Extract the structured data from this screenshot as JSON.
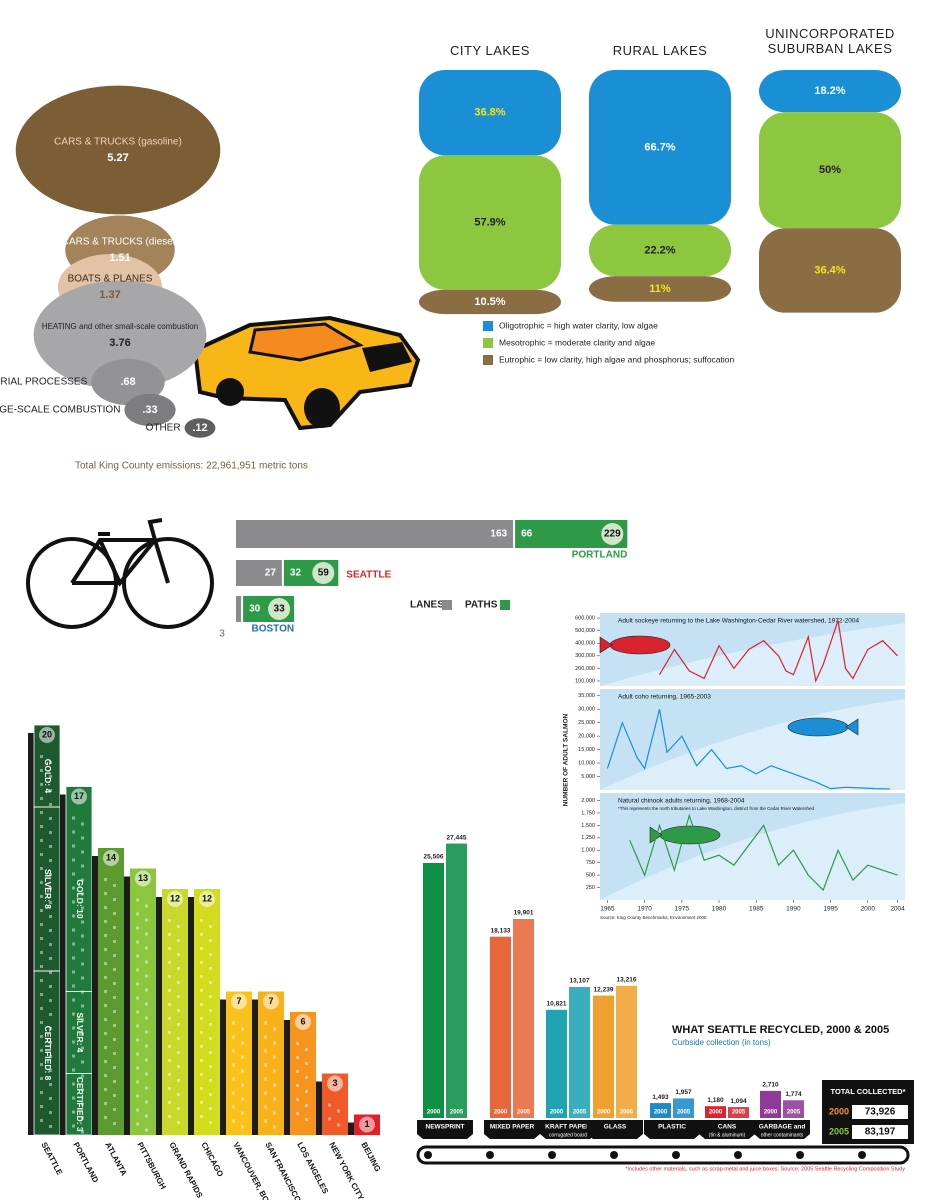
{
  "chart_data": [
    {
      "type": "bubble",
      "categories": [
        "CARS & TRUCKS (gasoline)",
        "CARS & TRUCKS (diesel)",
        "BOATS & PLANES",
        "HEATING and other small-scale combustion",
        "INDUSTRIAL PROCESSES",
        "LARGE-SCALE COMBUSTION",
        "OTHER"
      ],
      "values": [
        5.27,
        1.51,
        1.37,
        3.76,
        0.68,
        0.33,
        0.12
      ],
      "value_labels": [
        "5.27",
        "1.51",
        "1.37",
        "3.76",
        ".68",
        ".33",
        ".12"
      ],
      "colors": [
        "#7b5d36",
        "#a3835a",
        "#e3c3a5",
        "#a7a7a9",
        "#939396",
        "#7d7d80",
        "#5e5e61"
      ],
      "annotation": "Total King County emissions: 22,961,951 metric tons"
    },
    {
      "type": "stacked-bar",
      "categories": [
        "CITY LAKES",
        "RURAL LAKES",
        "UNINCORPORATED SUBURBAN LAKES"
      ],
      "series": [
        {
          "name": "Oligotrophic = high water clarity, low algae",
          "color": "#1b8fd6",
          "values": [
            36.8,
            66.7,
            18.2
          ],
          "value_labels": [
            "36.8%",
            "66.7%",
            "18.2%"
          ],
          "label_colors": [
            "#f5e614",
            "#ffffff",
            "#ffffff"
          ]
        },
        {
          "name": "Mesotrophic = moderate clarity and algae",
          "color": "#8dc63f",
          "values": [
            57.9,
            22.2,
            50
          ],
          "value_labels": [
            "57.9%",
            "22.2%",
            "50%"
          ],
          "label_colors": [
            "#222222",
            "#222222",
            "#222222"
          ]
        },
        {
          "name": "Eutrophic = low clarity, high algae and phosphorus; suffocation",
          "color": "#8b6d43",
          "values": [
            10.5,
            11,
            36.4
          ],
          "value_labels": [
            "10.5%",
            "11%",
            "36.4%"
          ],
          "label_colors": [
            "#ffffff",
            "#f5e614",
            "#f5e614"
          ]
        }
      ]
    },
    {
      "type": "horizontal-stacked-bar",
      "categories": [
        "PORTLAND",
        "SEATTLE",
        "BOSTON"
      ],
      "category_colors": [
        "#2e9a47",
        "#d9232e",
        "#1f6fb5"
      ],
      "series": [
        {
          "name": "LANES",
          "color": "#8b8b8e",
          "values": [
            163,
            27,
            3
          ]
        },
        {
          "name": "PATHS",
          "color": "#2e9a47",
          "values": [
            66,
            32,
            30
          ]
        }
      ],
      "totals": [
        229,
        59,
        33
      ]
    },
    {
      "type": "line",
      "ylabel": "NUMBER OF ADULT SALMON",
      "xlim": [
        1964,
        2005
      ],
      "xticks": [
        1965,
        1970,
        1975,
        1980,
        1985,
        1990,
        1995,
        2000,
        2004
      ],
      "source": "Source: King County Benchmarks; Environment 2005",
      "panels": [
        {
          "title": "Adult sockeye returning to the Lake Washington-Cedar River watershed, 1972-2004",
          "color": "#d9232e",
          "x": [
            1972,
            1974,
            1976,
            1978,
            1980,
            1982,
            1984,
            1986,
            1988,
            1989,
            1990,
            1992,
            1993,
            1994,
            1996,
            1997,
            1998,
            2000,
            2002,
            2004
          ],
          "values": [
            150000,
            350000,
            180000,
            120000,
            380000,
            200000,
            350000,
            420000,
            300000,
            180000,
            150000,
            450000,
            100000,
            230000,
            580000,
            200000,
            120000,
            350000,
            420000,
            300000
          ],
          "ylim": [
            60000,
            640000
          ],
          "yticks": [
            {
              "value": 100000,
              "label": "100,000"
            },
            {
              "value": 200000,
              "label": "200,000"
            },
            {
              "value": 300000,
              "label": "300,000"
            },
            {
              "value": 400000,
              "label": "400,000"
            },
            {
              "value": 500000,
              "label": "500,000"
            },
            {
              "value": 600000,
              "label": "600,000"
            }
          ]
        },
        {
          "title": "Adult coho returning, 1965-2003",
          "color": "#1b8fd6",
          "x": [
            1965,
            1967,
            1969,
            1970,
            1972,
            1973,
            1975,
            1977,
            1979,
            1981,
            1983,
            1985,
            1987,
            1989,
            1991,
            1993,
            1995,
            1997,
            1999,
            2001,
            2003
          ],
          "values": [
            8000,
            25000,
            12000,
            8000,
            30000,
            14000,
            20000,
            9000,
            15000,
            8000,
            9000,
            6000,
            9000,
            7000,
            5000,
            3000,
            500,
            1000,
            800,
            500,
            400
          ],
          "ylim": [
            0,
            37500
          ],
          "yticks": [
            {
              "value": 5000,
              "label": "5,000"
            },
            {
              "value": 10000,
              "label": "10,000"
            },
            {
              "value": 15000,
              "label": "15,000"
            },
            {
              "value": 20000,
              "label": "20,000"
            },
            {
              "value": 25000,
              "label": "25,000"
            },
            {
              "value": 30000,
              "label": "30,000"
            },
            {
              "value": 35000,
              "label": "35,000"
            }
          ]
        },
        {
          "title": "Natural chinook adults returning, 1968-2004",
          "note": "*This represents the north tributaries to Lake Washington, distinct from the Cedar River Watershed",
          "color": "#2e9a47",
          "x": [
            1968,
            1970,
            1972,
            1974,
            1976,
            1978,
            1980,
            1982,
            1984,
            1986,
            1988,
            1990,
            1992,
            1994,
            1996,
            1998,
            2000,
            2002,
            2004
          ],
          "values": [
            1200,
            500,
            1500,
            600,
            1700,
            800,
            900,
            700,
            1100,
            1500,
            700,
            1000,
            500,
            200,
            1000,
            400,
            700,
            600,
            500
          ],
          "ylim": [
            0,
            2150
          ],
          "yticks": [
            250,
            500,
            750,
            {
              "value": 1000,
              "label": "1,000"
            },
            {
              "value": 1250,
              "label": "1,250"
            },
            {
              "value": 1500,
              "label": "1,500"
            },
            {
              "value": 1750,
              "label": "1,750"
            },
            {
              "value": 2000,
              "label": "2,000"
            }
          ]
        }
      ]
    },
    {
      "type": "bar",
      "categories": [
        "SEATTLE",
        "PORTLAND",
        "ATLANTA",
        "PITTSBURGH",
        "GRAND RAPIDS",
        "CHICAGO",
        "VANCOUVER, BC",
        "SAN FRANCISCO",
        "LOS ANGELES",
        "NEW YORK CITY",
        "BEIJING"
      ],
      "values": [
        20,
        17,
        14,
        13,
        12,
        12,
        7,
        7,
        6,
        3,
        1
      ],
      "colors": [
        "#1d5a2e",
        "#1f7a3c",
        "#5c9c2e",
        "#8cc63f",
        "#c8d92b",
        "#d4dc1f",
        "#f9c21a",
        "#f7b21a",
        "#f7941d",
        "#f05a28",
        "#e21e26"
      ],
      "segments": [
        [
          {
            "label": "GOLD: 4",
            "value": 4
          },
          {
            "label": "SILVER: 8",
            "value": 8
          },
          {
            "label": "CERTIFIED: 8",
            "value": 8
          }
        ],
        [
          {
            "label": "GOLD: 10",
            "value": 10
          },
          {
            "label": "SILVER: 4",
            "value": 4
          },
          {
            "label": "CERTIFIED: 3",
            "value": 3
          }
        ],
        null,
        null,
        null,
        null,
        null,
        null,
        null,
        null,
        null
      ]
    },
    {
      "type": "grouped-bar",
      "title": "WHAT SEATTLE RECYCLED, 2000 & 2005",
      "subtitle": "Curbside collection (in tons)",
      "categories": [
        "NEWSPRINT",
        "MIXED PAPER",
        "KRAFT PAPER",
        "GLASS",
        "PLASTIC",
        "CANS",
        "GARBAGE and"
      ],
      "category_notes": [
        null,
        null,
        "corrugated board",
        null,
        null,
        "(tin & aluminum)",
        "other contaminants"
      ],
      "colors": [
        "#0d8f45",
        "#e8663c",
        "#1fa3b3",
        "#f0a030",
        "#1f8ac8",
        "#d9232e",
        "#8e3a96"
      ],
      "series": [
        {
          "name": "2000",
          "values": [
            25506,
            18133,
            10821,
            12239,
            1493,
            1180,
            2710
          ],
          "value_labels": [
            "25,506",
            "18,133",
            "10,821",
            "12,239",
            "1,493",
            "1,180",
            "2,710"
          ]
        },
        {
          "name": "2005",
          "values": [
            27445,
            19901,
            13107,
            13216,
            1957,
            1094,
            1774
          ],
          "value_labels": [
            "27,445",
            "19,901",
            "13,107",
            "13,216",
            "1,957",
            "1,094",
            "1,774"
          ]
        }
      ],
      "total_title": "TOTAL COLLECTED*",
      "totals": [
        {
          "value": 73926,
          "label": "73,926"
        },
        {
          "value": 83197,
          "label": "83,197"
        }
      ],
      "total_colors": [
        "#f7941d",
        "#8dc63f"
      ],
      "footnote": "*Includes other materials, such as scrap metal and juice boxes. Source: 2005 Seattle Recycling Composition Study"
    }
  ]
}
